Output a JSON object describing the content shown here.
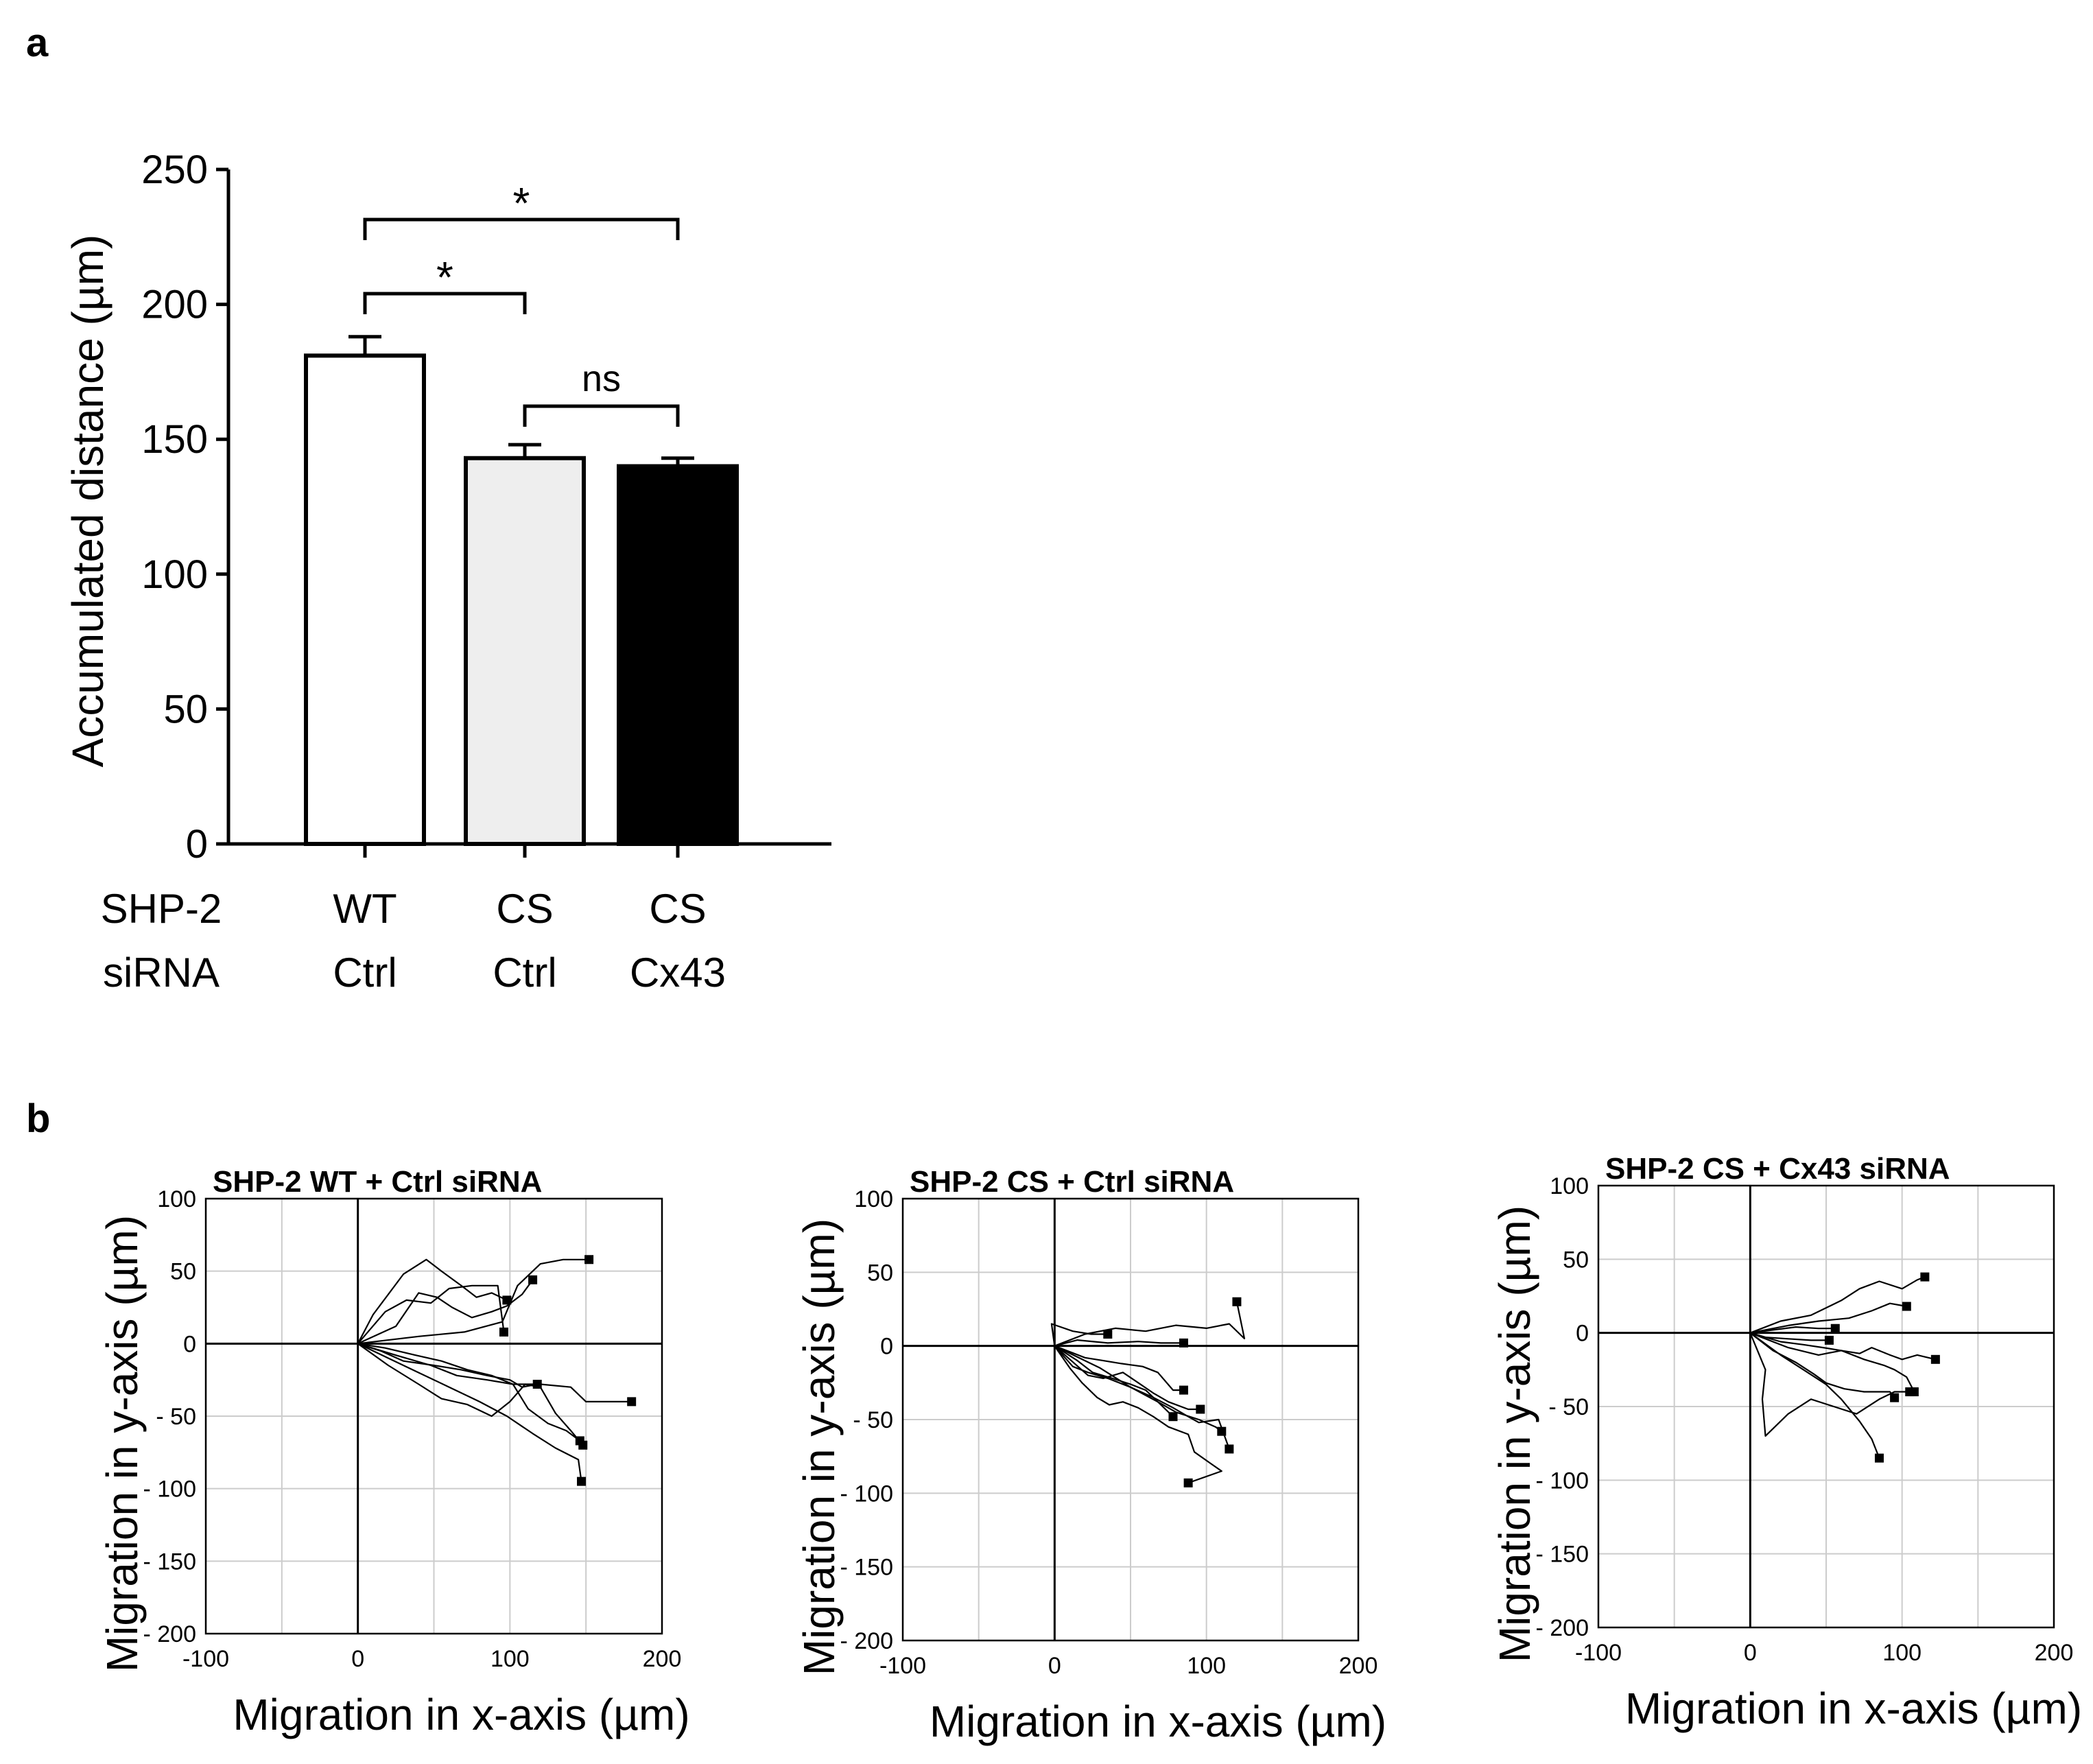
{
  "panel_a": {
    "letter": "a"
  },
  "panel_b": {
    "letter": "b"
  },
  "chart_data": [
    {
      "type": "bar",
      "title": "",
      "ylabel": "Accumulated distance (µm)",
      "xlabel": "",
      "ylim": [
        0,
        250
      ],
      "yticks": [
        0,
        50,
        100,
        150,
        200,
        250
      ],
      "row_labels": [
        "SHP-2",
        "siRNA"
      ],
      "categories": [
        {
          "shp2": "WT",
          "sirna": "Ctrl"
        },
        {
          "shp2": "CS",
          "sirna": "Ctrl"
        },
        {
          "shp2": "CS",
          "sirna": "Cx43"
        }
      ],
      "values": [
        181,
        143,
        140
      ],
      "errors": [
        7,
        5,
        3
      ],
      "bar_colors": [
        "#ffffff",
        "#eeeeee",
        "#000000"
      ],
      "significance": [
        {
          "from": 0,
          "to": 2,
          "label": "*"
        },
        {
          "from": 0,
          "to": 1,
          "label": "*"
        },
        {
          "from": 1,
          "to": 2,
          "label": "ns"
        }
      ]
    },
    {
      "type": "line",
      "title": "SHP-2 WT + Ctrl siRNA",
      "xlabel": "Migration in x-axis (µm)",
      "ylabel": "Migration in y-axis (µm)",
      "xlim": [
        -100,
        200
      ],
      "ylim": [
        -200,
        100
      ],
      "xticks": [
        "-100",
        "0",
        "100",
        "200"
      ],
      "yticks": [
        "100",
        "50",
        "0",
        "- 50",
        "- 100",
        "- 150",
        "- 200"
      ],
      "series": [
        {
          "points": [
            [
              0,
              0
            ],
            [
              10,
              20
            ],
            [
              30,
              48
            ],
            [
              45,
              58
            ],
            [
              55,
              50
            ],
            [
              68,
              40
            ],
            [
              78,
              32
            ],
            [
              88,
              35
            ],
            [
              98,
              30
            ]
          ]
        },
        {
          "points": [
            [
              0,
              0
            ],
            [
              18,
              22
            ],
            [
              32,
              30
            ],
            [
              48,
              28
            ],
            [
              60,
              38
            ],
            [
              75,
              40
            ],
            [
              92,
              40
            ],
            [
              96,
              8
            ]
          ]
        },
        {
          "points": [
            [
              0,
              0
            ],
            [
              25,
              12
            ],
            [
              40,
              35
            ],
            [
              52,
              32
            ],
            [
              62,
              25
            ],
            [
              75,
              18
            ],
            [
              88,
              22
            ],
            [
              98,
              26
            ],
            [
              108,
              34
            ],
            [
              115,
              44
            ]
          ]
        },
        {
          "points": [
            [
              0,
              0
            ],
            [
              40,
              5
            ],
            [
              70,
              8
            ],
            [
              95,
              15
            ],
            [
              105,
              40
            ],
            [
              113,
              48
            ],
            [
              120,
              55
            ],
            [
              135,
              58
            ],
            [
              152,
              58
            ]
          ]
        },
        {
          "points": [
            [
              0,
              0
            ],
            [
              18,
              -3
            ],
            [
              38,
              -8
            ],
            [
              55,
              -12
            ],
            [
              72,
              -18
            ],
            [
              88,
              -22
            ],
            [
              102,
              -28
            ],
            [
              120,
              -28
            ],
            [
              140,
              -30
            ],
            [
              150,
              -40
            ],
            [
              165,
              -40
            ],
            [
              180,
              -40
            ]
          ]
        },
        {
          "points": [
            [
              0,
              0
            ],
            [
              20,
              -10
            ],
            [
              40,
              -20
            ],
            [
              60,
              -30
            ],
            [
              80,
              -40
            ],
            [
              98,
              -50
            ],
            [
              115,
              -62
            ],
            [
              130,
              -72
            ],
            [
              145,
              -80
            ],
            [
              147,
              -95
            ]
          ]
        },
        {
          "points": [
            [
              0,
              0
            ],
            [
              25,
              -8
            ],
            [
              48,
              -15
            ],
            [
              65,
              -22
            ],
            [
              85,
              -25
            ],
            [
              102,
              -28
            ],
            [
              112,
              -45
            ],
            [
              125,
              -55
            ],
            [
              137,
              -60
            ],
            [
              146,
              -67
            ]
          ]
        },
        {
          "points": [
            [
              0,
              0
            ],
            [
              20,
              -15
            ],
            [
              40,
              -28
            ],
            [
              55,
              -38
            ],
            [
              72,
              -42
            ],
            [
              88,
              -50
            ],
            [
              100,
              -40
            ],
            [
              110,
              -28
            ],
            [
              120,
              -30
            ],
            [
              130,
              -48
            ],
            [
              140,
              -60
            ],
            [
              148,
              -70
            ]
          ]
        },
        {
          "points": [
            [
              0,
              0
            ],
            [
              15,
              -5
            ],
            [
              30,
              -12
            ],
            [
              50,
              -15
            ],
            [
              68,
              -18
            ],
            [
              85,
              -22
            ],
            [
              100,
              -25
            ],
            [
              108,
              -30
            ],
            [
              118,
              -28
            ]
          ]
        }
      ]
    },
    {
      "type": "line",
      "title": "SHP-2 CS + Ctrl siRNA",
      "xlabel": "Migration in x-axis (µm)",
      "ylabel": "Migration in y-axis (µm)",
      "xlim": [
        -100,
        200
      ],
      "ylim": [
        -200,
        100
      ],
      "xticks": [
        "-100",
        "0",
        "100",
        "200"
      ],
      "yticks": [
        "100",
        "50",
        "0",
        "- 50",
        "- 100",
        "- 150",
        "- 200"
      ],
      "series": [
        {
          "points": [
            [
              0,
              0
            ],
            [
              20,
              8
            ],
            [
              40,
              12
            ],
            [
              60,
              10
            ],
            [
              80,
              14
            ],
            [
              100,
              12
            ],
            [
              115,
              15
            ],
            [
              125,
              5
            ],
            [
              120,
              30
            ]
          ]
        },
        {
          "points": [
            [
              0,
              0
            ],
            [
              -2,
              15
            ],
            [
              12,
              10
            ],
            [
              24,
              8
            ],
            [
              35,
              8
            ]
          ]
        },
        {
          "points": [
            [
              0,
              0
            ],
            [
              15,
              4
            ],
            [
              35,
              2
            ],
            [
              55,
              3
            ],
            [
              70,
              2
            ],
            [
              85,
              2
            ]
          ]
        },
        {
          "points": [
            [
              0,
              0
            ],
            [
              12,
              -14
            ],
            [
              22,
              -18
            ],
            [
              35,
              -22
            ],
            [
              50,
              -28
            ],
            [
              65,
              -35
            ],
            [
              78,
              -42
            ],
            [
              88,
              -48
            ],
            [
              95,
              -52
            ],
            [
              108,
              -50
            ],
            [
              115,
              -70
            ]
          ]
        },
        {
          "points": [
            [
              0,
              0
            ],
            [
              10,
              -15
            ],
            [
              18,
              -25
            ],
            [
              28,
              -35
            ],
            [
              36,
              -40
            ],
            [
              45,
              -38
            ],
            [
              55,
              -42
            ],
            [
              65,
              -48
            ],
            [
              75,
              -55
            ],
            [
              88,
              -60
            ],
            [
              92,
              -72
            ],
            [
              103,
              -80
            ],
            [
              110,
              -85
            ],
            [
              88,
              -93
            ]
          ]
        },
        {
          "points": [
            [
              0,
              0
            ],
            [
              20,
              -8
            ],
            [
              32,
              -10
            ],
            [
              44,
              -12
            ],
            [
              58,
              -14
            ],
            [
              68,
              -18
            ],
            [
              78,
              -30
            ],
            [
              85,
              -30
            ]
          ]
        },
        {
          "points": [
            [
              0,
              0
            ],
            [
              15,
              -10
            ],
            [
              25,
              -18
            ],
            [
              38,
              -22
            ],
            [
              50,
              -26
            ],
            [
              60,
              -30
            ],
            [
              70,
              -40
            ],
            [
              78,
              -48
            ]
          ]
        },
        {
          "points": [
            [
              0,
              0
            ],
            [
              22,
              -20
            ],
            [
              32,
              -22
            ],
            [
              45,
              -18
            ],
            [
              55,
              -25
            ],
            [
              65,
              -32
            ],
            [
              75,
              -38
            ],
            [
              88,
              -43
            ],
            [
              96,
              -43
            ]
          ]
        },
        {
          "points": [
            [
              0,
              0
            ],
            [
              30,
              -15
            ],
            [
              50,
              -28
            ],
            [
              68,
              -38
            ],
            [
              80,
              -45
            ],
            [
              95,
              -50
            ],
            [
              106,
              -55
            ],
            [
              110,
              -58
            ]
          ]
        }
      ]
    },
    {
      "type": "line",
      "title": "SHP-2 CS + Cx43 siRNA",
      "xlabel": "Migration in x-axis (µm)",
      "ylabel": "Migration in y-axis (µm)",
      "xlim": [
        -100,
        200
      ],
      "ylim": [
        -200,
        100
      ],
      "xticks": [
        "-100",
        "0",
        "100",
        "200"
      ],
      "yticks": [
        "100",
        "50",
        "0",
        "- 50",
        "- 100",
        "- 150",
        "- 200"
      ],
      "series": [
        {
          "points": [
            [
              0,
              0
            ],
            [
              20,
              8
            ],
            [
              40,
              12
            ],
            [
              60,
              22
            ],
            [
              72,
              30
            ],
            [
              85,
              35
            ],
            [
              100,
              30
            ],
            [
              110,
              36
            ],
            [
              115,
              38
            ]
          ]
        },
        {
          "points": [
            [
              0,
              0
            ],
            [
              25,
              5
            ],
            [
              45,
              8
            ],
            [
              65,
              10
            ],
            [
              80,
              15
            ],
            [
              92,
              20
            ],
            [
              103,
              18
            ]
          ]
        },
        {
          "points": [
            [
              0,
              0
            ],
            [
              15,
              2
            ],
            [
              30,
              4
            ],
            [
              45,
              3
            ],
            [
              56,
              3
            ]
          ]
        },
        {
          "points": [
            [
              0,
              0
            ],
            [
              10,
              -3
            ],
            [
              25,
              -4
            ],
            [
              40,
              -5
            ],
            [
              52,
              -5
            ]
          ]
        },
        {
          "points": [
            [
              0,
              0
            ],
            [
              20,
              -6
            ],
            [
              35,
              -8
            ],
            [
              48,
              -10
            ],
            [
              60,
              -12
            ],
            [
              72,
              -14
            ],
            [
              80,
              -10
            ],
            [
              92,
              -15
            ],
            [
              100,
              -18
            ],
            [
              110,
              -15
            ],
            [
              122,
              -18
            ]
          ]
        },
        {
          "points": [
            [
              0,
              0
            ],
            [
              10,
              -25
            ],
            [
              8,
              -45
            ],
            [
              10,
              -70
            ],
            [
              25,
              -55
            ],
            [
              40,
              -45
            ],
            [
              55,
              -50
            ],
            [
              70,
              -55
            ],
            [
              85,
              -45
            ],
            [
              95,
              -40
            ],
            [
              105,
              -40
            ]
          ]
        },
        {
          "points": [
            [
              0,
              0
            ],
            [
              20,
              -15
            ],
            [
              35,
              -25
            ],
            [
              50,
              -35
            ],
            [
              60,
              -45
            ],
            [
              72,
              -60
            ],
            [
              80,
              -72
            ],
            [
              85,
              -85
            ]
          ]
        },
        {
          "points": [
            [
              0,
              0
            ],
            [
              25,
              -10
            ],
            [
              45,
              -15
            ],
            [
              60,
              -12
            ],
            [
              75,
              -18
            ],
            [
              88,
              -22
            ],
            [
              95,
              -25
            ],
            [
              103,
              -30
            ],
            [
              108,
              -40
            ]
          ]
        },
        {
          "points": [
            [
              0,
              0
            ],
            [
              15,
              -12
            ],
            [
              30,
              -20
            ],
            [
              42,
              -28
            ],
            [
              50,
              -34
            ],
            [
              62,
              -38
            ],
            [
              75,
              -40
            ],
            [
              92,
              -40
            ],
            [
              95,
              -44
            ]
          ]
        }
      ]
    }
  ]
}
